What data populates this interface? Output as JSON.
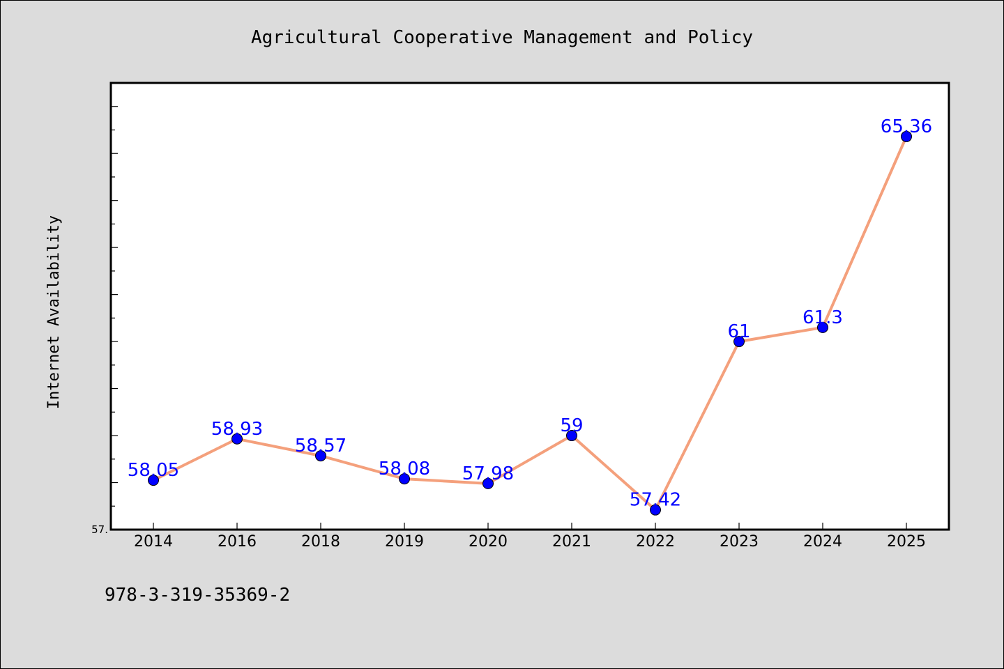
{
  "chart_data": {
    "type": "line",
    "title": "Agricultural Cooperative Management and Policy",
    "xlabel": "",
    "ylabel": "Internet Availability",
    "categories": [
      "2014",
      "2016",
      "2018",
      "2019",
      "2020",
      "2021",
      "2022",
      "2023",
      "2024",
      "2025"
    ],
    "series": [
      {
        "values": [
          58.05,
          58.93,
          58.57,
          58.08,
          57.98,
          59,
          57.42,
          61,
          61.3,
          65.36
        ],
        "labels": [
          "58.05",
          "58.93",
          "58.57",
          "58.08",
          "57.98",
          "59",
          "57.42",
          "61",
          "61.3",
          "65.36"
        ]
      }
    ],
    "ylim": [
      57.0,
      66.5
    ],
    "y_minor_tick_step": 0.5,
    "y_tick_labels": [
      {
        "value": 57.0,
        "label": "57."
      }
    ],
    "grid": false,
    "legend": "none",
    "colors": {
      "line": "#f4a07c",
      "marker": "#0000ff",
      "data_label": "#0000ff",
      "background": "#dcdcdc",
      "plot_background": "#ffffff"
    }
  },
  "footer": {
    "isbn": "978-3-319-35369-2"
  }
}
